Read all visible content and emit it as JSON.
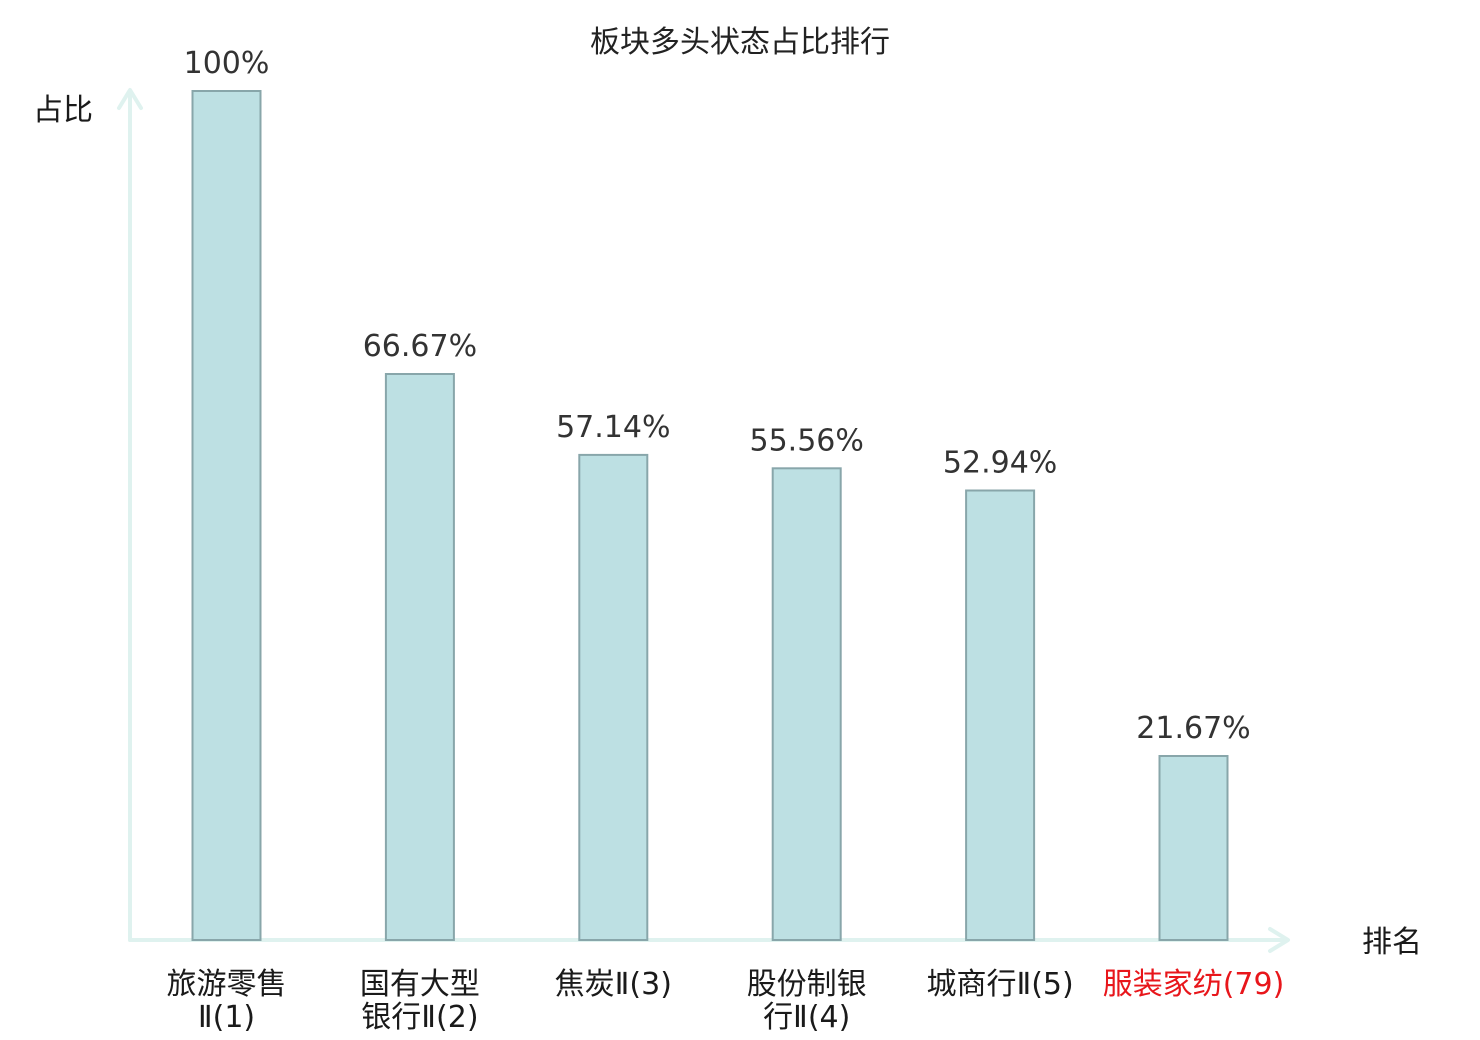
{
  "chart_data": {
    "type": "bar",
    "title": "板块多头状态占比排行",
    "ylabel": "占比",
    "xlabel": "排名",
    "categories": [
      [
        "旅游零售",
        "Ⅱ(1)"
      ],
      [
        "国有大型",
        "银行Ⅱ(2)"
      ],
      [
        "焦炭Ⅱ(3)"
      ],
      [
        "股份制银",
        "行Ⅱ(4)"
      ],
      [
        "城商行Ⅱ(5)"
      ],
      [
        "服装家纺(79)"
      ]
    ],
    "values": [
      100,
      66.67,
      57.14,
      55.56,
      52.94,
      21.67
    ],
    "value_labels": [
      "100%",
      "66.67%",
      "57.14%",
      "55.56%",
      "52.94%",
      "21.67%"
    ],
    "highlight_index": 5,
    "ylim": [
      0,
      100
    ],
    "grid": false,
    "colors": {
      "bar_fill": "#bde0e3",
      "bar_stroke": "#88a6aa",
      "axis": "#dff2ef",
      "highlight_text": "#e8161b",
      "text": "#1a1a1a",
      "value_text": "#333333"
    }
  }
}
